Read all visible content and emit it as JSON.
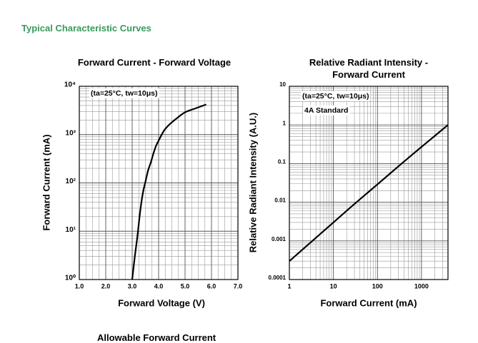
{
  "heading": "Typical Characteristic Curves",
  "next_heading": "Allowable Forward Current",
  "chart_data": [
    {
      "type": "line",
      "title": "Forward Current - Forward Voltage",
      "x_label": "Forward Voltage (V)",
      "y_label": "Forward Current (mA)",
      "annotations": [
        "(ta=25°C, tw=10μs)"
      ],
      "x": [
        3.0,
        3.1,
        3.2,
        3.3,
        3.4,
        3.5,
        3.6,
        3.7,
        3.8,
        3.9,
        4.0,
        4.2,
        4.4,
        4.7,
        5.0,
        5.4,
        5.8
      ],
      "values": [
        1,
        3,
        8,
        25,
        60,
        105,
        180,
        260,
        400,
        580,
        750,
        1200,
        1600,
        2200,
        2900,
        3500,
        4200
      ],
      "color": "#000000",
      "xlim": [
        1,
        7
      ],
      "xticks": [
        {
          "value": 1,
          "label": "1.0"
        },
        {
          "value": 2,
          "label": "2.0"
        },
        {
          "value": 3,
          "label": "3.0"
        },
        {
          "value": 4,
          "label": "4.0"
        },
        {
          "value": 5,
          "label": "5.0"
        },
        {
          "value": 6,
          "label": "6.0"
        },
        {
          "value": 7,
          "label": "7.0"
        }
      ],
      "ylim": [
        1,
        10000
      ],
      "ylog": true,
      "yticks": [
        {
          "value": 1,
          "label": "10⁰"
        },
        {
          "value": 10,
          "label": "10¹"
        },
        {
          "value": 100,
          "label": "10²"
        },
        {
          "value": 1000,
          "label": "10³"
        },
        {
          "value": 10000,
          "label": "10⁴"
        }
      ],
      "grid": true
    },
    {
      "type": "line",
      "title": "Relative Radiant Intensity - Forward Current",
      "x_label": "Forward Current (mA)",
      "y_label": "Relative Radiant Intensity (A.U.)",
      "annotations": [
        "(ta=25°C, tw=10μs)",
        "4A Standard"
      ],
      "x": [
        1,
        3,
        10,
        30,
        100,
        300,
        1000,
        2000,
        4000
      ],
      "values": [
        0.0003,
        0.0009,
        0.003,
        0.009,
        0.029,
        0.085,
        0.27,
        0.52,
        1
      ],
      "color": "#000000",
      "xlim": [
        1,
        4000
      ],
      "xlog": true,
      "xticks": [
        1,
        10,
        100,
        1000
      ],
      "ylim": [
        0.0001,
        10
      ],
      "ylog": true,
      "yticks": [
        0.0001,
        0.001,
        0.01,
        0.1,
        1,
        10
      ],
      "grid": true
    }
  ]
}
